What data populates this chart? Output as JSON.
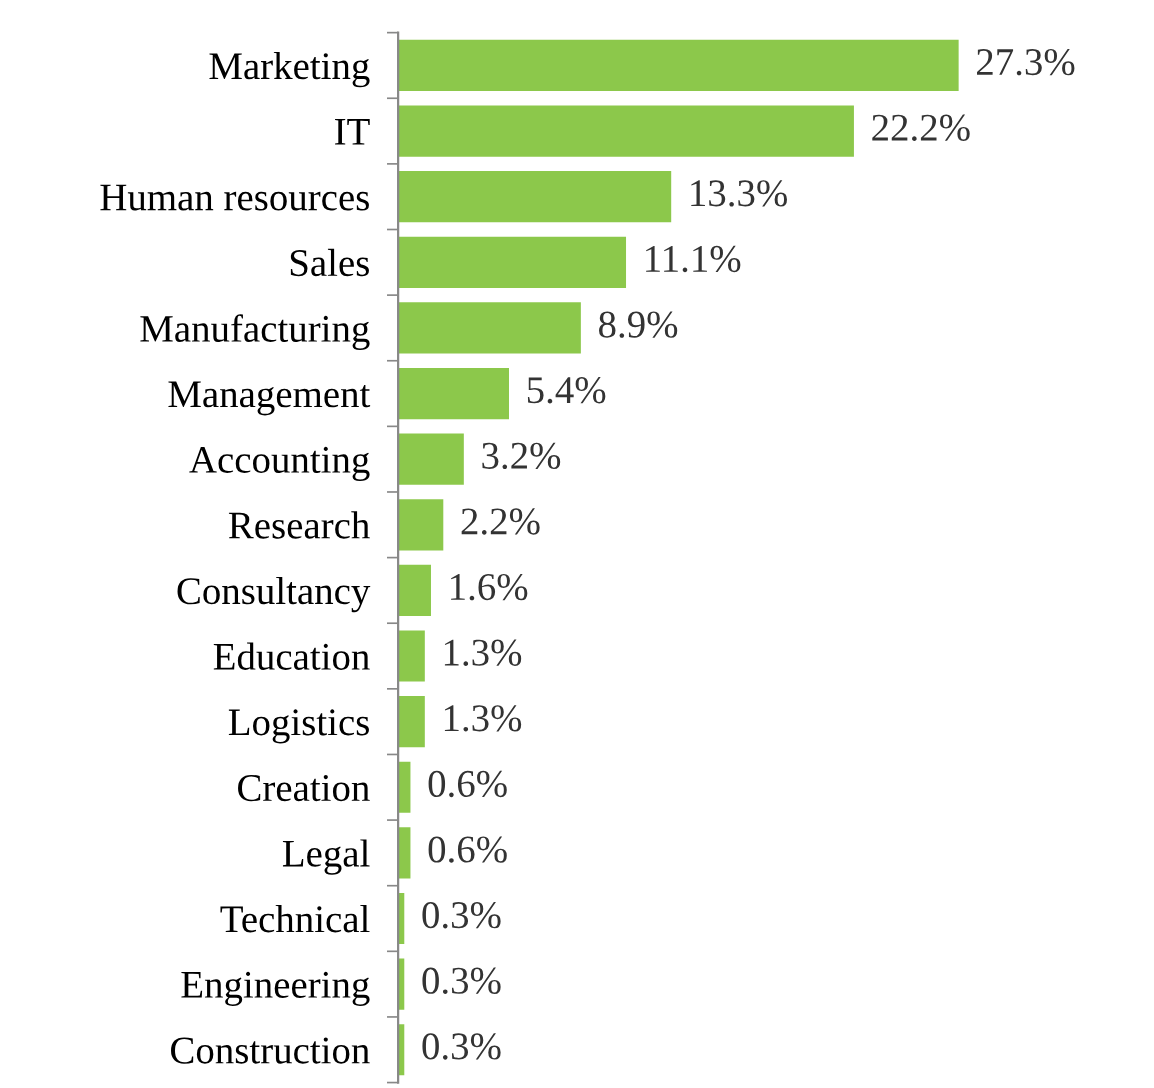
{
  "chart_data": {
    "type": "bar",
    "orientation": "horizontal",
    "categories": [
      "Marketing",
      "IT",
      "Human resources",
      "Sales",
      "Manufacturing",
      "Management",
      "Accounting",
      "Research",
      "Consultancy",
      "Education",
      "Logistics",
      "Creation",
      "Legal",
      "Technical",
      "Engineering",
      "Construction"
    ],
    "values": [
      27.3,
      22.2,
      13.3,
      11.1,
      8.9,
      5.4,
      3.2,
      2.2,
      1.6,
      1.3,
      1.3,
      0.6,
      0.6,
      0.3,
      0.3,
      0.3
    ],
    "value_labels": [
      "27.3%",
      "22.2%",
      "13.3%",
      "11.1%",
      "8.9%",
      "5.4%",
      "3.2%",
      "2.2%",
      "1.6%",
      "1.3%",
      "1.3%",
      "0.6%",
      "0.6%",
      "0.3%",
      "0.3%",
      "0.3%"
    ],
    "color": "#8cc84b",
    "grid": false,
    "legend": false,
    "tick_labels": "y"
  }
}
